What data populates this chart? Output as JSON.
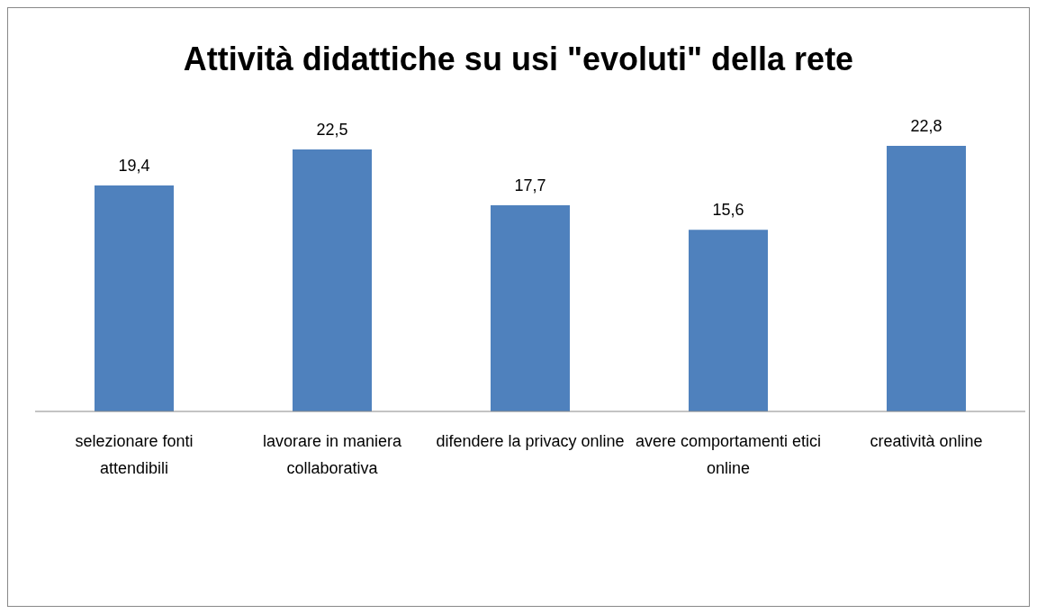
{
  "chart_data": {
    "type": "bar",
    "title": "Attività didattiche su usi \"evoluti\" della rete",
    "categories": [
      "selezionare fonti attendibili",
      "lavorare in maniera collaborativa",
      "difendere la privacy online",
      "avere comportamenti etici online",
      "creatività online"
    ],
    "values": [
      19.4,
      22.5,
      17.7,
      15.6,
      22.8
    ],
    "color": "#4f81bd",
    "value_labels": [
      "19,4",
      "22,5",
      "17,7",
      "15,6",
      "22,8"
    ]
  }
}
